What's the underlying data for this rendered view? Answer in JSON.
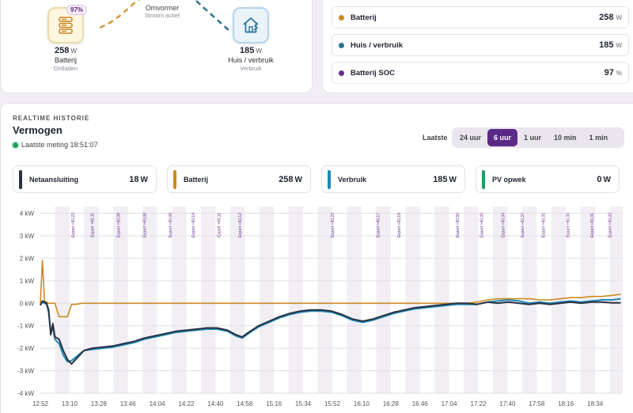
{
  "flow": {
    "battery": {
      "soc_badge": "97%",
      "value": "258",
      "unit": "W",
      "label": "Batterij",
      "sub": "Ontladen"
    },
    "inverter": {
      "label": "Omvormer",
      "sub": "Stroom actief"
    },
    "home": {
      "value": "185",
      "unit": "W",
      "label": "Huis / verbruik",
      "sub": "Verbruik"
    }
  },
  "legend": [
    {
      "name": "Batterij",
      "value": "258",
      "unit": "W",
      "color": "#cc8a1f"
    },
    {
      "name": "Huis / verbruik",
      "value": "185",
      "unit": "W",
      "color": "#2d6f94"
    },
    {
      "name": "Batterij SOC",
      "value": "97",
      "unit": "%",
      "color": "#6b2d8c"
    }
  ],
  "history": {
    "eyebrow": "REALTIME HISTORIE",
    "title": "Vermogen",
    "last_measurement": "Laatste meting 18:51:07",
    "range_label": "Laatste",
    "ranges": [
      "24 uur",
      "6 uur",
      "1 uur",
      "10 min",
      "1 min"
    ],
    "active_range": "6 uur"
  },
  "metrics": [
    {
      "name": "Netaansluiting",
      "value": "18",
      "unit": "W",
      "color": "#2a3140"
    },
    {
      "name": "Batterij",
      "value": "258",
      "unit": "W",
      "color": "#cc8a1f"
    },
    {
      "name": "Verbruik",
      "value": "185",
      "unit": "W",
      "color": "#1f88b8"
    },
    {
      "name": "PV opwek",
      "value": "0",
      "unit": "W",
      "color": "#1e9e62"
    }
  ],
  "chart_data": {
    "type": "line",
    "x_ticks": [
      "12:52",
      "13:10",
      "13:28",
      "13:46",
      "14:04",
      "14:22",
      "14:40",
      "14:58",
      "15:16",
      "15:34",
      "15:52",
      "16:10",
      "16:28",
      "16:46",
      "17:04",
      "17:22",
      "17:40",
      "17:58",
      "18:16",
      "18:34"
    ],
    "y_ticks": [
      "4 kW",
      "3 kW",
      "2 kW",
      "1 kW",
      "0 kW",
      "-1 kW",
      "-2 kW",
      "-3 kW",
      "-4 kW"
    ],
    "ylim": [
      -4,
      4.3
    ],
    "xlim": [
      "12:52",
      "18:51"
    ],
    "grid": "horizontal lines with alternating shaded time bands",
    "export_annotations": [
      {
        "time": "13:13",
        "label": "Export +€0,23"
      },
      {
        "time": "13:25",
        "label": "Export +€0,11"
      },
      {
        "time": "13:41",
        "label": "Export +€0,08"
      },
      {
        "time": "13:57",
        "label": "Export +€0,08"
      },
      {
        "time": "14:13",
        "label": "Export +€0,08"
      },
      {
        "time": "14:27",
        "label": "Export +€0,14"
      },
      {
        "time": "14:43",
        "label": "Export +€0,11"
      },
      {
        "time": "14:56",
        "label": "Export +€0,12"
      },
      {
        "time": "15:53",
        "label": "Export +€0,22"
      },
      {
        "time": "16:21",
        "label": "Export +€0,17"
      },
      {
        "time": "16:34",
        "label": "Export +€0,19"
      },
      {
        "time": "17:10",
        "label": "Export +€0,50"
      },
      {
        "time": "17:25",
        "label": "Export +€0,40"
      },
      {
        "time": "17:38",
        "label": "Export +€0,34"
      },
      {
        "time": "17:50",
        "label": "Export +€0,37"
      },
      {
        "time": "18:03",
        "label": "Export +€0,31"
      },
      {
        "time": "18:18",
        "label": "Export +€0,30"
      },
      {
        "time": "18:33",
        "label": "Export +€0,31"
      },
      {
        "time": "18:44",
        "label": "Export +€0,32"
      }
    ],
    "series": [
      {
        "name": "Netaansluiting",
        "color": "#2a3140",
        "points": [
          [
            0,
            -0.1
          ],
          [
            1,
            0.1
          ],
          [
            3,
            0
          ],
          [
            4,
            -0.3
          ],
          [
            5,
            -1.4
          ],
          [
            6,
            -0.9
          ],
          [
            7,
            -1.5
          ],
          [
            9,
            -1.6
          ],
          [
            11,
            -2.1
          ],
          [
            13,
            -2.5
          ],
          [
            15,
            -2.7
          ],
          [
            17,
            -2.5
          ],
          [
            19,
            -2.3
          ],
          [
            21,
            -2.1
          ],
          [
            25,
            -2.0
          ],
          [
            30,
            -1.95
          ],
          [
            35,
            -1.9
          ],
          [
            40,
            -1.8
          ],
          [
            45,
            -1.7
          ],
          [
            50,
            -1.55
          ],
          [
            55,
            -1.45
          ],
          [
            60,
            -1.35
          ],
          [
            65,
            -1.25
          ],
          [
            70,
            -1.2
          ],
          [
            75,
            -1.15
          ],
          [
            80,
            -1.1
          ],
          [
            85,
            -1.1
          ],
          [
            90,
            -1.2
          ],
          [
            94,
            -1.4
          ],
          [
            97,
            -1.5
          ],
          [
            100,
            -1.3
          ],
          [
            105,
            -1.0
          ],
          [
            110,
            -0.8
          ],
          [
            115,
            -0.6
          ],
          [
            120,
            -0.45
          ],
          [
            125,
            -0.35
          ],
          [
            130,
            -0.3
          ],
          [
            135,
            -0.3
          ],
          [
            140,
            -0.35
          ],
          [
            145,
            -0.5
          ],
          [
            150,
            -0.7
          ],
          [
            155,
            -0.8
          ],
          [
            160,
            -0.7
          ],
          [
            165,
            -0.55
          ],
          [
            170,
            -0.4
          ],
          [
            175,
            -0.3
          ],
          [
            180,
            -0.2
          ],
          [
            185,
            -0.15
          ],
          [
            190,
            -0.1
          ],
          [
            195,
            -0.05
          ],
          [
            200,
            0
          ],
          [
            205,
            0
          ],
          [
            210,
            -0.05
          ],
          [
            215,
            0.05
          ],
          [
            220,
            0
          ],
          [
            225,
            0.05
          ],
          [
            230,
            0
          ],
          [
            235,
            -0.05
          ],
          [
            240,
            0
          ],
          [
            245,
            -0.05
          ],
          [
            250,
            0
          ],
          [
            255,
            0.05
          ],
          [
            260,
            0
          ],
          [
            265,
            0.05
          ],
          [
            270,
            0.05
          ],
          [
            275,
            0.02
          ],
          [
            279,
            0.02
          ]
        ]
      },
      {
        "name": "Verbruik",
        "color": "#1f88b8",
        "points": [
          [
            0,
            -0.05
          ],
          [
            1,
            0.05
          ],
          [
            3,
            -0.05
          ],
          [
            4,
            -0.4
          ],
          [
            5,
            -1.3
          ],
          [
            6,
            -1.1
          ],
          [
            7,
            -1.6
          ],
          [
            9,
            -1.8
          ],
          [
            11,
            -2.3
          ],
          [
            13,
            -2.6
          ],
          [
            15,
            -2.55
          ],
          [
            17,
            -2.4
          ],
          [
            19,
            -2.25
          ],
          [
            21,
            -2.1
          ],
          [
            25,
            -2.05
          ],
          [
            30,
            -2.0
          ],
          [
            35,
            -1.95
          ],
          [
            40,
            -1.85
          ],
          [
            45,
            -1.75
          ],
          [
            50,
            -1.6
          ],
          [
            55,
            -1.5
          ],
          [
            60,
            -1.4
          ],
          [
            65,
            -1.3
          ],
          [
            70,
            -1.25
          ],
          [
            75,
            -1.2
          ],
          [
            80,
            -1.15
          ],
          [
            85,
            -1.15
          ],
          [
            90,
            -1.25
          ],
          [
            94,
            -1.45
          ],
          [
            97,
            -1.55
          ],
          [
            100,
            -1.35
          ],
          [
            105,
            -1.05
          ],
          [
            110,
            -0.85
          ],
          [
            115,
            -0.65
          ],
          [
            120,
            -0.5
          ],
          [
            125,
            -0.4
          ],
          [
            130,
            -0.35
          ],
          [
            135,
            -0.35
          ],
          [
            140,
            -0.4
          ],
          [
            145,
            -0.55
          ],
          [
            150,
            -0.75
          ],
          [
            155,
            -0.85
          ],
          [
            160,
            -0.75
          ],
          [
            165,
            -0.6
          ],
          [
            170,
            -0.45
          ],
          [
            175,
            -0.35
          ],
          [
            180,
            -0.25
          ],
          [
            185,
            -0.2
          ],
          [
            190,
            -0.15
          ],
          [
            195,
            -0.1
          ],
          [
            200,
            -0.05
          ],
          [
            205,
            -0.05
          ],
          [
            210,
            -0.05
          ],
          [
            215,
            0.05
          ],
          [
            220,
            0.1
          ],
          [
            225,
            0.15
          ],
          [
            230,
            0.1
          ],
          [
            235,
            0.0
          ],
          [
            240,
            0.05
          ],
          [
            245,
            0.0
          ],
          [
            250,
            0.05
          ],
          [
            255,
            0.1
          ],
          [
            260,
            0.05
          ],
          [
            265,
            0.1
          ],
          [
            270,
            0.15
          ],
          [
            275,
            0.15
          ],
          [
            279,
            0.2
          ]
        ]
      },
      {
        "name": "Batterij",
        "color": "#cc8a1f",
        "points": [
          [
            0,
            0
          ],
          [
            1,
            1.9
          ],
          [
            2,
            0.1
          ],
          [
            4,
            0
          ],
          [
            7,
            0
          ],
          [
            9,
            -0.6
          ],
          [
            11,
            -0.6
          ],
          [
            13,
            -0.6
          ],
          [
            15,
            -0.05
          ],
          [
            17,
            -0.05
          ],
          [
            20,
            0
          ],
          [
            30,
            0
          ],
          [
            40,
            0
          ],
          [
            50,
            0
          ],
          [
            60,
            0
          ],
          [
            70,
            0
          ],
          [
            80,
            0
          ],
          [
            90,
            0
          ],
          [
            100,
            0
          ],
          [
            110,
            0
          ],
          [
            120,
            0
          ],
          [
            130,
            0
          ],
          [
            140,
            0
          ],
          [
            150,
            0
          ],
          [
            160,
            0
          ],
          [
            170,
            0
          ],
          [
            180,
            0
          ],
          [
            190,
            0
          ],
          [
            200,
            0
          ],
          [
            205,
            0
          ],
          [
            210,
            0.05
          ],
          [
            215,
            0.15
          ],
          [
            220,
            0.2
          ],
          [
            225,
            0.2
          ],
          [
            230,
            0.2
          ],
          [
            235,
            0.2
          ],
          [
            240,
            0.15
          ],
          [
            245,
            0.15
          ],
          [
            250,
            0.2
          ],
          [
            255,
            0.25
          ],
          [
            260,
            0.25
          ],
          [
            265,
            0.3
          ],
          [
            270,
            0.3
          ],
          [
            275,
            0.35
          ],
          [
            279,
            0.4
          ]
        ]
      }
    ]
  }
}
